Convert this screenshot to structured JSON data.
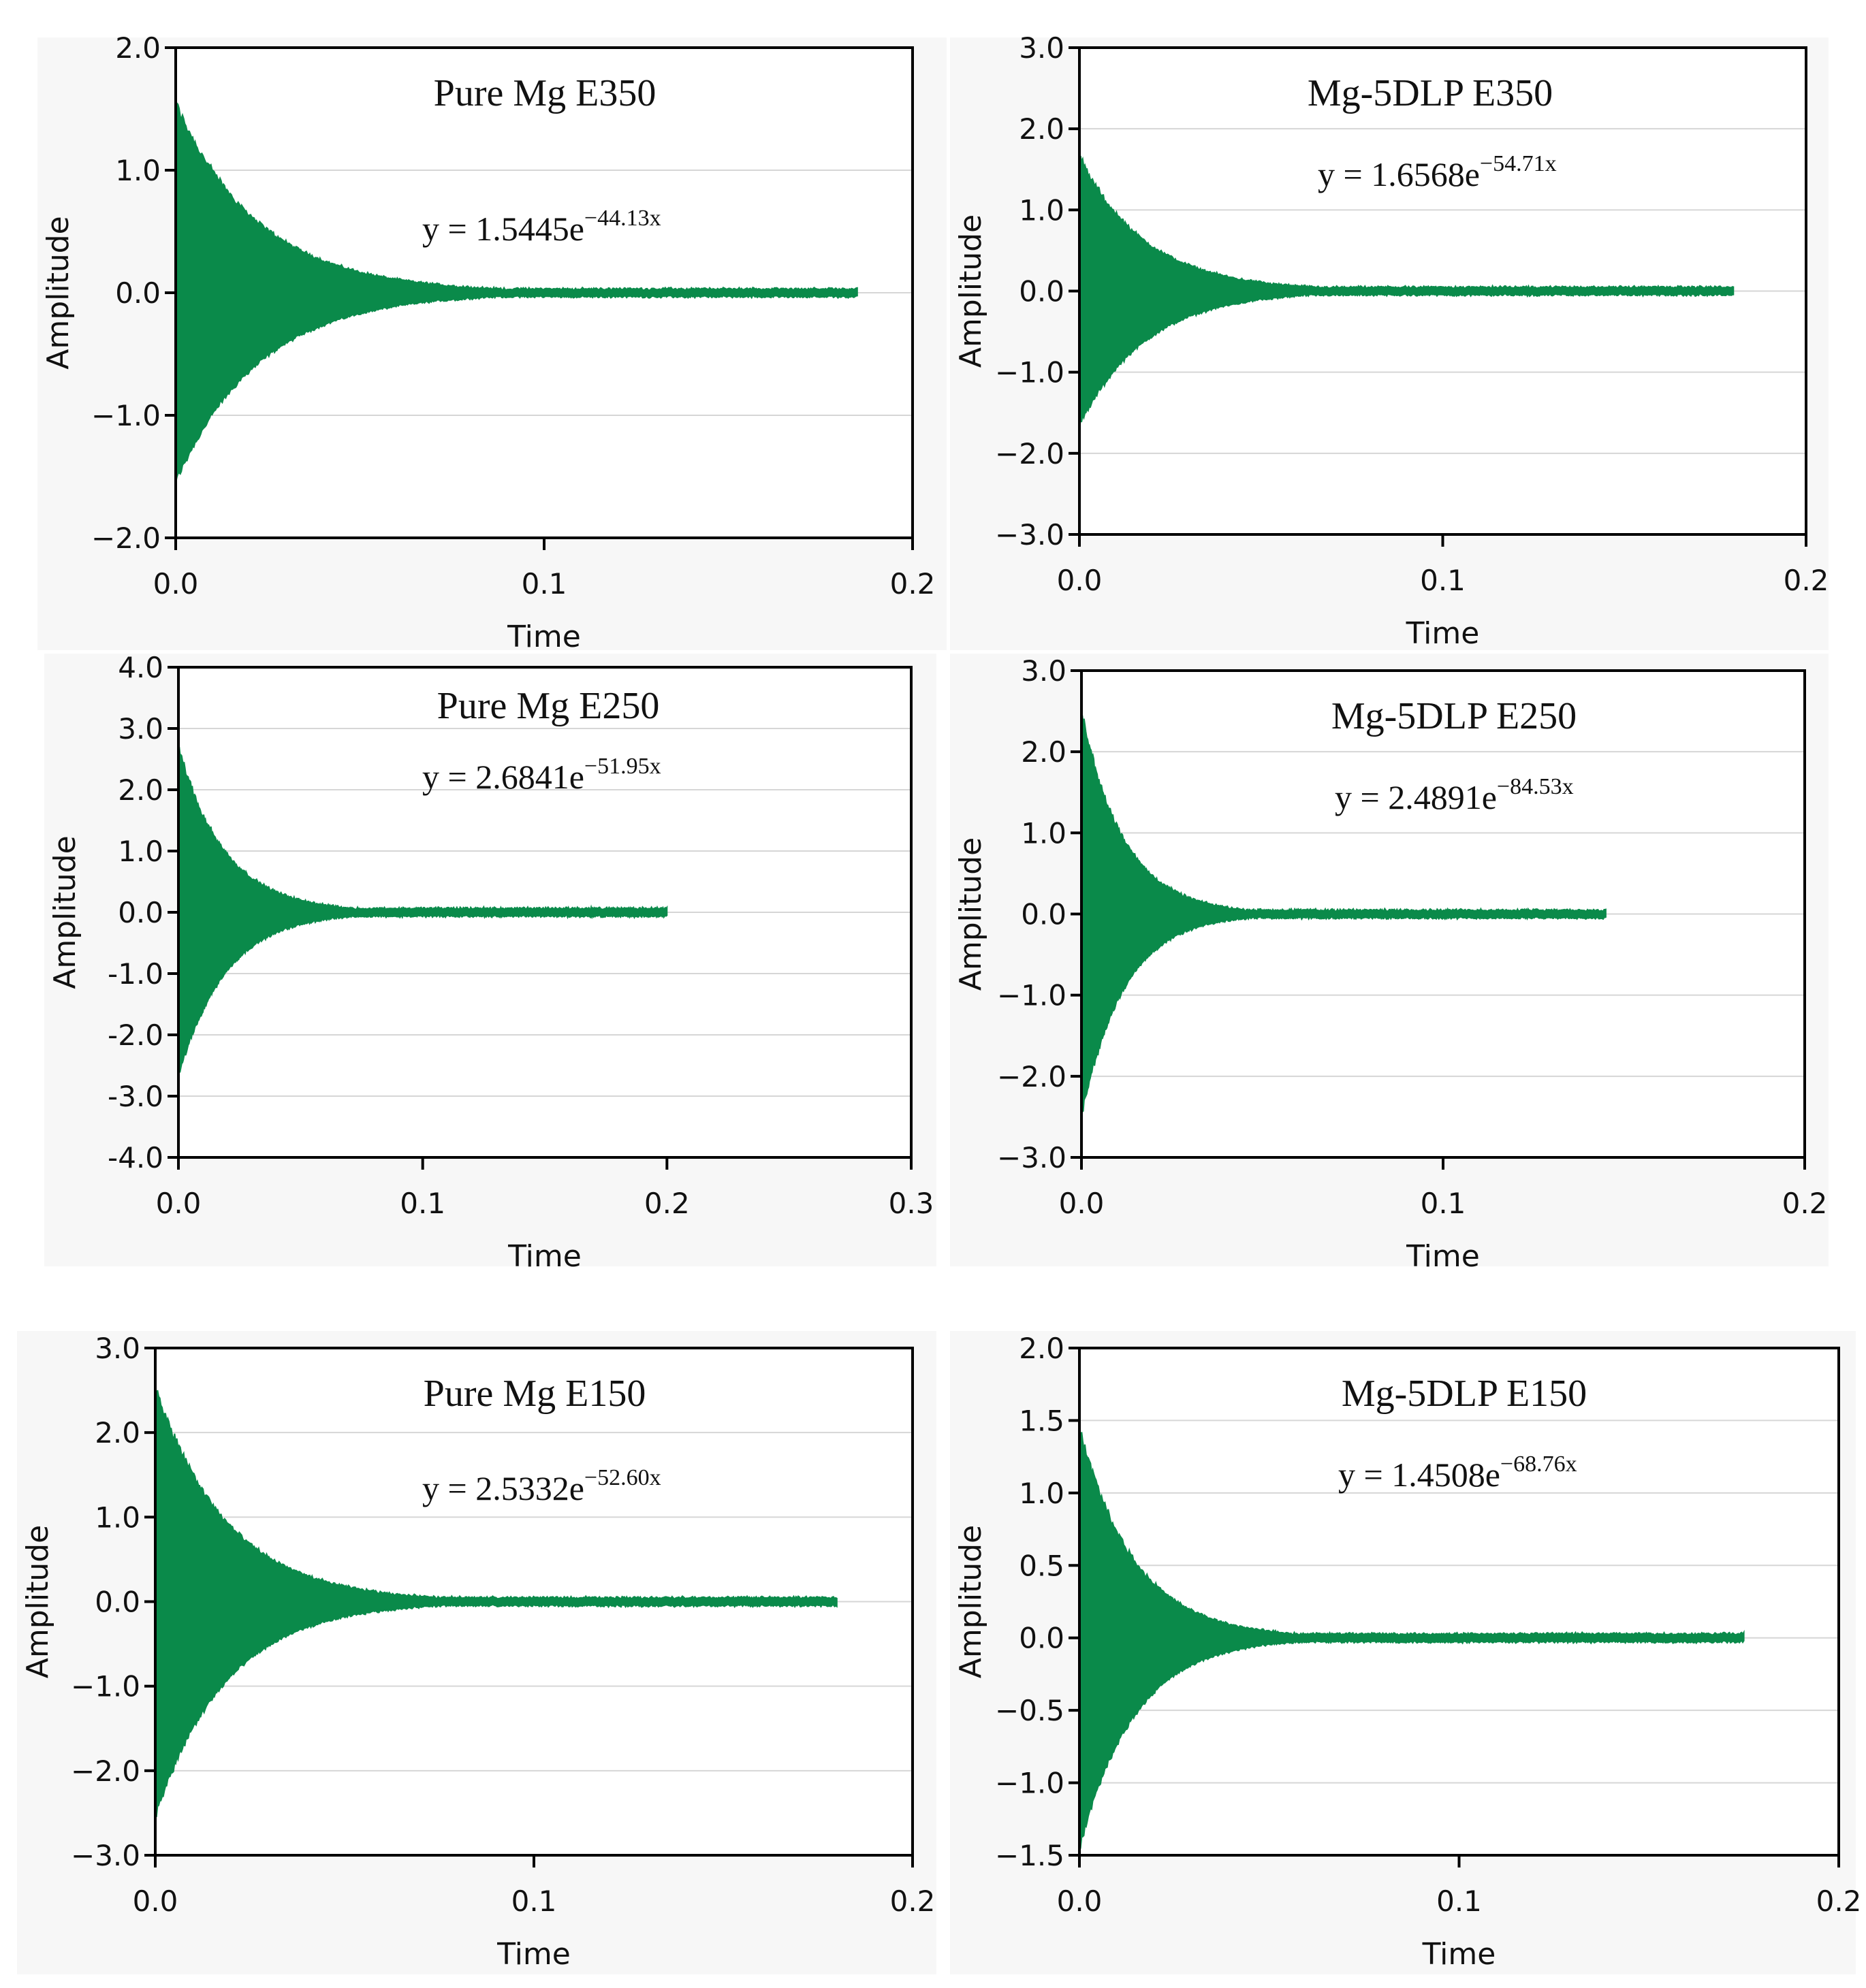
{
  "colors": {
    "signal": "#0a8a4a",
    "grid": "#d6d6d6",
    "frame": "#000000",
    "panel_bg": "#f7f7f7"
  },
  "chart_data": [
    {
      "type": "line",
      "title": "Pure Mg E350",
      "equation": {
        "prefix": "y = 1.5445e",
        "exponent": "−44.13x"
      },
      "coef": 1.5445,
      "rate": 44.13,
      "end_time": 0.185,
      "xlabel": "Time",
      "ylabel": "Amplitude",
      "xlim": [
        0,
        0.2
      ],
      "ylim": [
        -2.0,
        2.0
      ],
      "xticks": [
        0.0,
        0.1,
        0.2
      ],
      "xtick_labels": [
        "0.0",
        "0.1",
        "0.2"
      ],
      "yticks": [
        2.0,
        1.0,
        0.0,
        -1.0,
        -2.0
      ],
      "ytick_labels": [
        "2.0",
        "1.0",
        "0.0",
        "−1.0",
        "−2.0"
      ]
    },
    {
      "type": "line",
      "title": "Mg-5DLP E350",
      "equation": {
        "prefix": "y = 1.6568e",
        "exponent": "−54.71x"
      },
      "coef": 1.6568,
      "rate": 54.71,
      "end_time": 0.18,
      "xlabel": "Time",
      "ylabel": "Amplitude",
      "xlim": [
        0,
        0.2
      ],
      "ylim": [
        -3.0,
        3.0
      ],
      "xticks": [
        0.0,
        0.1,
        0.2
      ],
      "xtick_labels": [
        "0.0",
        "0.1",
        "0.2"
      ],
      "yticks": [
        3.0,
        2.0,
        1.0,
        0.0,
        -1.0,
        -2.0,
        -3.0
      ],
      "ytick_labels": [
        "3.0",
        "2.0",
        "1.0",
        "0.0",
        "−1.0",
        "−2.0",
        "−3.0"
      ]
    },
    {
      "type": "line",
      "title": "Pure Mg E250",
      "equation": {
        "prefix": "y = 2.6841e",
        "exponent": "−51.95x"
      },
      "coef": 2.6841,
      "rate": 51.95,
      "end_time": 0.2,
      "xlabel": "Time",
      "ylabel": "Amplitude",
      "xlim": [
        0,
        0.3
      ],
      "ylim": [
        -4.0,
        4.0
      ],
      "xticks": [
        0.0,
        0.1,
        0.2,
        0.3
      ],
      "xtick_labels": [
        "0.0",
        "0.1",
        "0.2",
        "0.3"
      ],
      "yticks": [
        4.0,
        3.0,
        2.0,
        1.0,
        0.0,
        -1.0,
        -2.0,
        -3.0,
        -4.0
      ],
      "ytick_labels": [
        "4.0",
        "3.0",
        "2.0",
        "1.0",
        "0.0",
        "-1.0",
        "-2.0",
        "-3.0",
        "-4.0"
      ]
    },
    {
      "type": "line",
      "title": "Mg-5DLP E250",
      "equation": {
        "prefix": "y = 2.4891e",
        "exponent": "−84.53x"
      },
      "coef": 2.4891,
      "rate": 84.53,
      "end_time": 0.145,
      "xlabel": "Time",
      "ylabel": "Amplitude",
      "xlim": [
        0,
        0.2
      ],
      "ylim": [
        -3.0,
        3.0
      ],
      "xticks": [
        0.0,
        0.1,
        0.2
      ],
      "xtick_labels": [
        "0.0",
        "0.1",
        "0.2"
      ],
      "yticks": [
        3.0,
        2.0,
        1.0,
        0.0,
        -1.0,
        -2.0,
        -3.0
      ],
      "ytick_labels": [
        "3.0",
        "2.0",
        "1.0",
        "0.0",
        "−1.0",
        "−2.0",
        "−3.0"
      ]
    },
    {
      "type": "line",
      "title": "Pure Mg E150",
      "equation": {
        "prefix": "y = 2.5332e",
        "exponent": "−52.60x"
      },
      "coef": 2.5332,
      "rate": 52.6,
      "end_time": 0.18,
      "xlabel": "Time",
      "ylabel": "Amplitude",
      "xlim": [
        0,
        0.2
      ],
      "ylim": [
        -3.0,
        3.0
      ],
      "xticks": [
        0.0,
        0.1,
        0.2
      ],
      "xtick_labels": [
        "0.0",
        "0.1",
        "0.2"
      ],
      "yticks": [
        3.0,
        2.0,
        1.0,
        0.0,
        -1.0,
        -2.0,
        -3.0
      ],
      "ytick_labels": [
        "3.0",
        "2.0",
        "1.0",
        "0.0",
        "−1.0",
        "−2.0",
        "−3.0"
      ]
    },
    {
      "type": "line",
      "title": "Mg-5DLP E150",
      "equation": {
        "prefix": "y = 1.4508e",
        "exponent": "−68.76x"
      },
      "coef": 1.4508,
      "rate": 68.76,
      "end_time": 0.175,
      "xlabel": "Time",
      "ylabel": "Amplitude",
      "xlim": [
        0,
        0.2
      ],
      "ylim": [
        -1.5,
        2.0
      ],
      "xticks": [
        0.0,
        0.1,
        0.2
      ],
      "xtick_labels": [
        "0.0",
        "0.1",
        "0.2"
      ],
      "yticks": [
        2.0,
        1.5,
        1.0,
        0.5,
        0.0,
        -0.5,
        -1.0,
        -1.5
      ],
      "ytick_labels": [
        "2.0",
        "1.5",
        "1.0",
        "0.5",
        "0.0",
        "−0.5",
        "−1.0",
        "−1.5"
      ]
    }
  ]
}
